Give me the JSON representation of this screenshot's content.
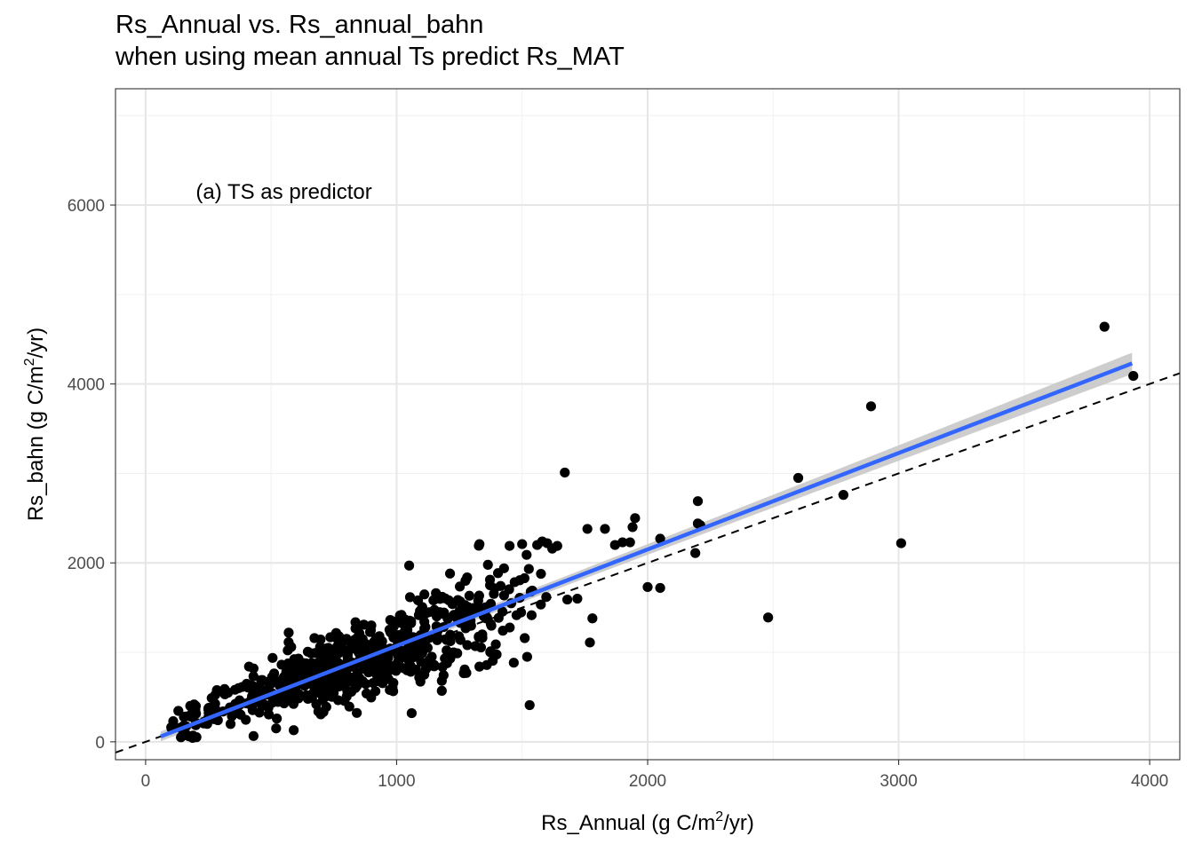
{
  "chart_data": {
    "type": "scatter",
    "title": "Rs_Annual vs. Rs_annual_bahn",
    "subtitle": "when using mean annual Ts predict Rs_MAT",
    "xlabel": {
      "pre": "Rs_Annual (g C/m",
      "sup": "2",
      "post": "/yr)"
    },
    "ylabel": {
      "pre": "Rs_bahn (g C/m",
      "sup": "2",
      "post": "/yr)"
    },
    "annotation": {
      "text": "(a) TS as predictor",
      "x": 200,
      "y": 6150
    },
    "xlim": [
      -120,
      4120
    ],
    "ylim": [
      -200,
      7300
    ],
    "x_major_ticks": [
      0,
      1000,
      2000,
      3000,
      4000
    ],
    "x_tick_labels": [
      "0",
      "1000",
      "2000",
      "3000",
      "4000"
    ],
    "x_minor_ticks": [
      500,
      1500,
      2500,
      3500
    ],
    "y_major_ticks": [
      0,
      2000,
      4000,
      6000
    ],
    "y_tick_labels": [
      "0",
      "2000",
      "4000",
      "6000"
    ],
    "y_minor_ticks": [
      1000,
      3000,
      5000,
      7000
    ],
    "grid": true,
    "reference_line": {
      "style": "dashed",
      "color": "#000000",
      "intercept": 0,
      "slope": 1.0
    },
    "fit_line": {
      "color": "#3366ff",
      "ci_color": "#c8c8c8",
      "x": [
        60,
        3930
      ],
      "y": [
        60,
        4230
      ],
      "ci_start": 45,
      "ci_end": 120
    },
    "series": [
      {
        "point_color": "#000000",
        "outliers": [
          [
            3820,
            4640
          ],
          [
            3935,
            4090
          ],
          [
            2890,
            3750
          ],
          [
            2600,
            2950
          ],
          [
            2780,
            2760
          ],
          [
            3010,
            2220
          ],
          [
            2480,
            1390
          ],
          [
            2200,
            2690
          ],
          [
            2200,
            2440
          ],
          [
            2210,
            2420
          ],
          [
            2190,
            2110
          ],
          [
            2050,
            2270
          ],
          [
            2000,
            1730
          ],
          [
            2050,
            1720
          ],
          [
            1670,
            3010
          ],
          [
            1950,
            2500
          ],
          [
            1940,
            2400
          ],
          [
            1900,
            2230
          ],
          [
            1930,
            2230
          ],
          [
            1870,
            2200
          ],
          [
            1830,
            2380
          ],
          [
            1760,
            2380
          ],
          [
            1780,
            1380
          ],
          [
            1770,
            1110
          ],
          [
            1720,
            1600
          ],
          [
            1680,
            1590
          ],
          [
            1640,
            2190
          ],
          [
            1620,
            2160
          ],
          [
            1600,
            2220
          ],
          [
            1580,
            2240
          ],
          [
            1560,
            2200
          ],
          [
            1500,
            2210
          ],
          [
            1450,
            2190
          ],
          [
            1330,
            2210
          ],
          [
            1520,
            950
          ],
          [
            1530,
            410
          ],
          [
            1050,
            1970
          ],
          [
            1180,
            570
          ],
          [
            1090,
            720
          ],
          [
            1080,
            950
          ],
          [
            1060,
            320
          ],
          [
            950,
            790
          ],
          [
            920,
            750
          ],
          [
            880,
            540
          ],
          [
            820,
            560
          ],
          [
            720,
            390
          ],
          [
            680,
            420
          ],
          [
            640,
            520
          ],
          [
            590,
            130
          ],
          [
            520,
            150
          ],
          [
            430,
            65
          ],
          [
            110,
            230
          ],
          [
            150,
            110
          ],
          [
            200,
            400
          ],
          [
            260,
            370
          ],
          [
            320,
            550
          ],
          [
            430,
            820
          ],
          [
            460,
            690
          ],
          [
            570,
            1220
          ],
          [
            580,
            1060
          ]
        ],
        "cloud": {
          "n": 640,
          "x_min": 60,
          "x_peak": 780,
          "x_max": 1650,
          "slope": 1.03,
          "intercept": 40
        }
      }
    ]
  }
}
